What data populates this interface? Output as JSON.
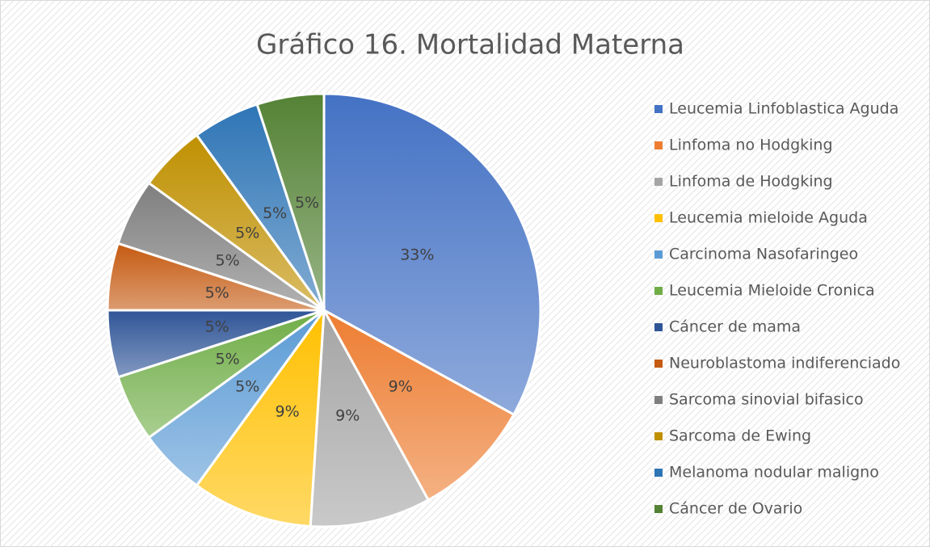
{
  "chart_data": {
    "type": "pie",
    "title": "Gráfico 16. Mortalidad Materna",
    "categories": [
      "Leucemia Linfoblastica Aguda",
      "Linfoma no Hodgking",
      "Linfoma de Hodgking",
      "Leucemia mieloide Aguda",
      "Carcinoma Nasofaringeo",
      "Leucemia Mieloide Cronica",
      "Cáncer de mama",
      "Neuroblastoma indiferenciado",
      "Sarcoma sinovial bifasico",
      "Sarcoma de Ewing",
      "Melanoma nodular maligno",
      "Cáncer de Ovario"
    ],
    "values": [
      33,
      9,
      9,
      9,
      5,
      5,
      5,
      5,
      5,
      5,
      5,
      5
    ],
    "value_labels": [
      "33%",
      "9%",
      "9%",
      "9%",
      "5%",
      "5%",
      "5%",
      "5%",
      "5%",
      "5%",
      "5%",
      "5%"
    ],
    "colors": [
      "#4472c4",
      "#ed7d31",
      "#a5a5a5",
      "#ffc000",
      "#5b9bd5",
      "#70ad47",
      "#2f5597",
      "#c55a11",
      "#7f7f7f",
      "#bf9000",
      "#2e75b6",
      "#548235"
    ],
    "legend": "right"
  }
}
